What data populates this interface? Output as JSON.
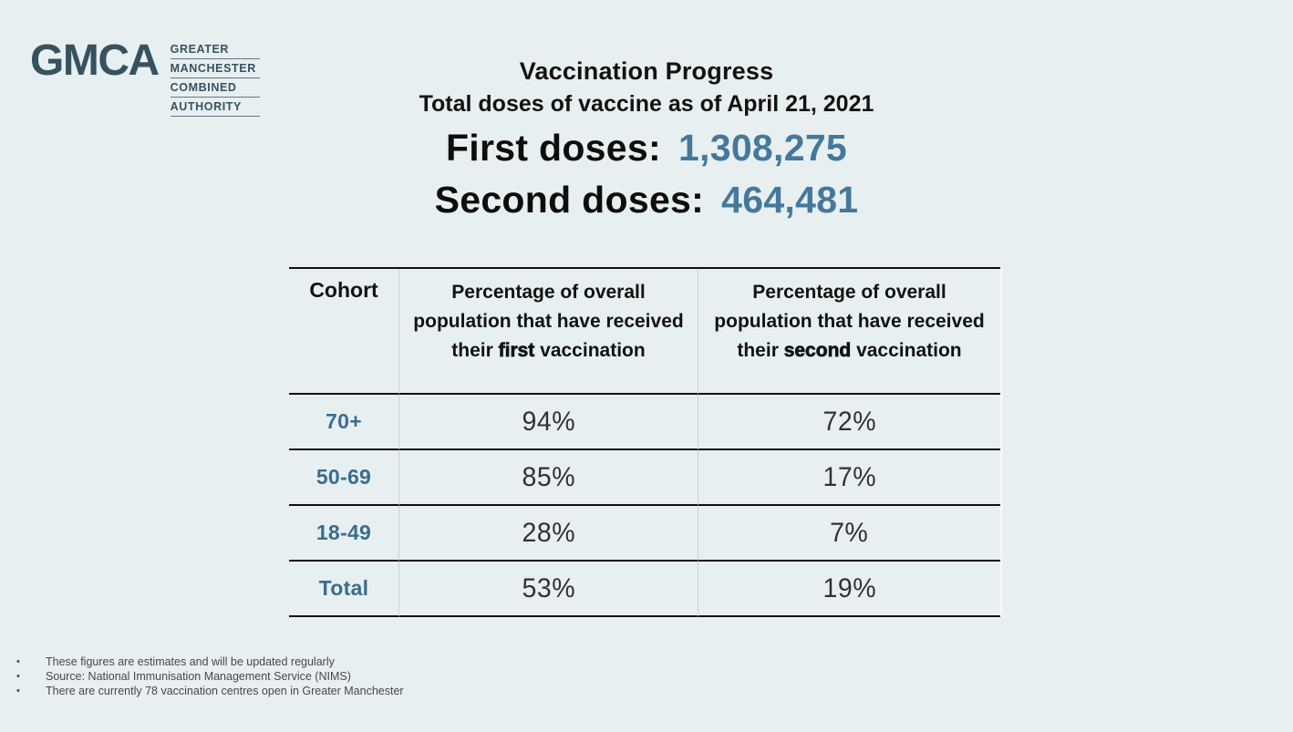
{
  "colors": {
    "background": "#e8eff1",
    "slate": "#37525f",
    "accent_blue": "#45789a",
    "cohort_blue": "#3a6d8e",
    "text_dark": "#121212",
    "border_dark": "#101010",
    "divider_light": "#c9d3d7",
    "pct_text": "#2e3338",
    "footer_text": "#43484c"
  },
  "logo": {
    "acronym": "GMCA",
    "lines": [
      "GREATER",
      "MANCHESTER",
      "COMBINED",
      "AUTHORITY"
    ]
  },
  "header": {
    "title": "Vaccination Progress",
    "subtitle": "Total doses of vaccine as of April 21, 2021",
    "first_doses_label": "First doses:",
    "first_doses_value": "1,308,275",
    "second_doses_label": "Second doses:",
    "second_doses_value": "464,481"
  },
  "table": {
    "header": {
      "cohort": "Cohort",
      "first": {
        "prefix": "Percentage of overall population that have received their ",
        "emphasis": "first",
        "suffix": " vaccination"
      },
      "second": {
        "prefix": "Percentage of overall population that have received their ",
        "emphasis": "second",
        "suffix": " vaccination"
      }
    },
    "rows": [
      {
        "cohort": "70+",
        "first": "94%",
        "second": "72%"
      },
      {
        "cohort": "50-69",
        "first": "85%",
        "second": "17%"
      },
      {
        "cohort": "18-49",
        "first": "28%",
        "second": "7%"
      },
      {
        "cohort": "Total",
        "first": "53%",
        "second": "19%"
      }
    ]
  },
  "chart_data": {
    "type": "table",
    "title": "Vaccination Progress",
    "subtitle": "Total doses of vaccine as of April 21, 2021",
    "totals": {
      "first_doses": 1308275,
      "second_doses": 464481
    },
    "columns": [
      "Cohort",
      "Percentage of overall population that have received their first vaccination",
      "Percentage of overall population that have received their second vaccination"
    ],
    "units": "%",
    "rows": [
      {
        "cohort": "70+",
        "first_pct": 94,
        "second_pct": 72
      },
      {
        "cohort": "50-69",
        "first_pct": 85,
        "second_pct": 17
      },
      {
        "cohort": "18-49",
        "first_pct": 28,
        "second_pct": 7
      },
      {
        "cohort": "Total",
        "first_pct": 53,
        "second_pct": 19
      }
    ]
  },
  "footnotes": [
    "These figures are estimates and will be updated regularly",
    "Source: National Immunisation Management Service (NIMS)",
    "There are currently 78 vaccination centres open in Greater Manchester"
  ]
}
